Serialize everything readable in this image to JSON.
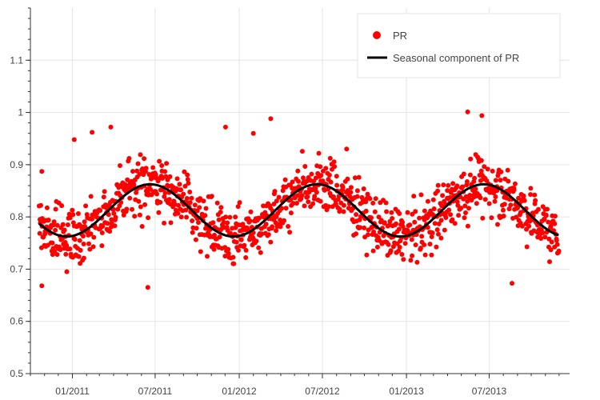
{
  "chart_data": {
    "type": "scatter",
    "ylim": [
      0.5,
      1.2
    ],
    "yticks": [
      0.5,
      0.6,
      0.7,
      0.8,
      0.9,
      1,
      1.1
    ],
    "ytick_labels": [
      "0.5",
      "0.6",
      "0.7",
      "0.8",
      "0.9",
      "1",
      "1.1"
    ],
    "x_range": [
      "2010-10-01",
      "2013-12-24"
    ],
    "xticks": [
      "2011-01-01",
      "2011-07-01",
      "2012-01-01",
      "2012-07-01",
      "2013-01-01",
      "2013-07-01"
    ],
    "xtick_labels": [
      "01/2011",
      "07/2011",
      "01/2012",
      "07/2012",
      "01/2013",
      "07/2013"
    ],
    "grid": true,
    "legend_position": "top-right",
    "colors": {
      "scatter": "#ff0000",
      "seasonal": "#000000",
      "grid": "#e5e5e5",
      "axis": "#333333"
    },
    "series": [
      {
        "name": "PR",
        "kind": "scatter",
        "date_range": [
          "2010-10-20",
          "2013-11-30"
        ],
        "approx_points": 1100,
        "typical_spread": [
          0.68,
          0.93
        ],
        "notable_values": [
          {
            "x": "2010-10-26",
            "y": 0.668
          },
          {
            "x": "2010-10-26",
            "y": 0.887
          },
          {
            "x": "2011-01-05",
            "y": 0.948
          },
          {
            "x": "2011-02-13",
            "y": 0.962
          },
          {
            "x": "2011-03-26",
            "y": 0.972
          },
          {
            "x": "2011-06-15",
            "y": 0.665
          },
          {
            "x": "2011-12-02",
            "y": 0.972
          },
          {
            "x": "2012-02-01",
            "y": 0.96
          },
          {
            "x": "2012-03-10",
            "y": 0.988
          },
          {
            "x": "2012-08-23",
            "y": 0.93
          },
          {
            "x": "2013-05-15",
            "y": 1.001
          },
          {
            "x": "2013-06-15",
            "y": 0.994
          },
          {
            "x": "2013-08-20",
            "y": 0.673
          }
        ]
      },
      {
        "name": "Seasonal component of PR",
        "kind": "line",
        "date_range": [
          "2010-10-20",
          "2013-11-30"
        ],
        "mean": 0.8125,
        "amplitude": 0.05,
        "peak_date": "2011-06-20",
        "period_days": 365
      }
    ]
  }
}
